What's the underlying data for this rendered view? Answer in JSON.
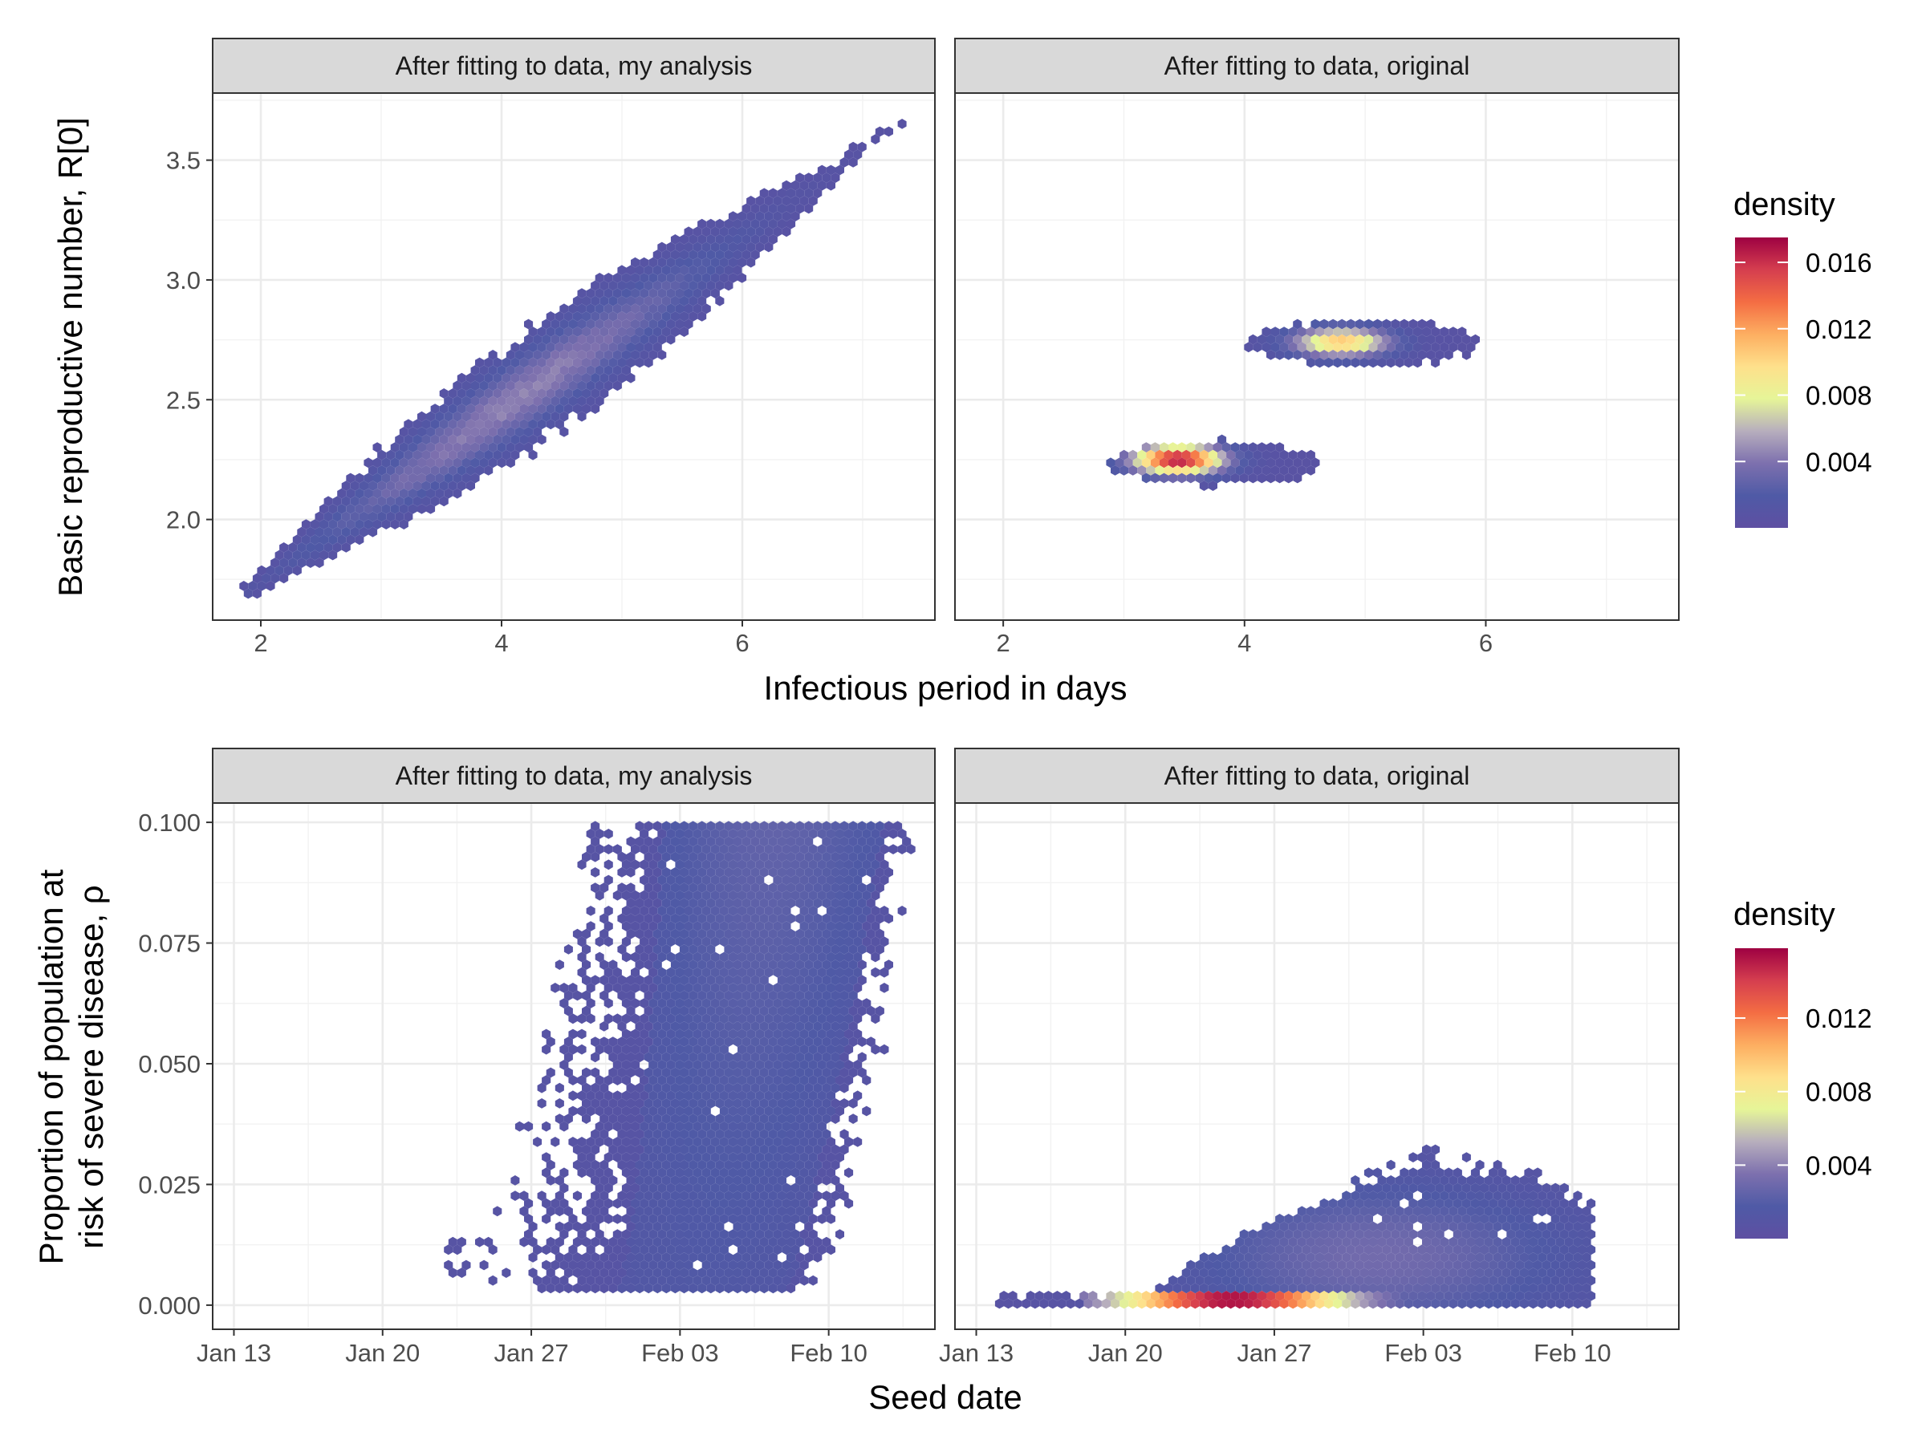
{
  "colors": {
    "palette": [
      "#5e4fa2",
      "#4f5aa6",
      "#7d70ae",
      "#b7aebd",
      "#e6f598",
      "#fee08b",
      "#fdae61",
      "#f46d43",
      "#d53e4f",
      "#9e0142"
    ],
    "strip_bg": "#d9d9d9",
    "panel_border": "#333333",
    "grid_major": "#ebebeb"
  },
  "chart_data": [
    {
      "type": "heatmap",
      "subtype": "hexbin-density",
      "xlabel": "Infectious period in days",
      "ylabel": "Basic reproductive number, R[0]",
      "xlim": [
        1.6,
        7.6
      ],
      "ylim": [
        1.58,
        3.78
      ],
      "x_ticks": [
        2,
        4,
        6
      ],
      "x_tick_labels": [
        "2",
        "4",
        "6"
      ],
      "y_ticks": [
        2.0,
        2.5,
        3.0,
        3.5
      ],
      "y_tick_labels": [
        "2.0",
        "2.5",
        "3.0",
        "3.5"
      ],
      "legend": {
        "title": "density",
        "range": [
          0,
          0.0175
        ],
        "ticks": [
          0.004,
          0.008,
          0.012,
          0.016
        ],
        "tick_labels": [
          "0.004",
          "0.008",
          "0.012",
          "0.016"
        ],
        "placement": "right"
      },
      "grid": true,
      "panels": [
        {
          "strip": "After fitting to data, my analysis",
          "clusters": [
            {
              "shape": "diagonal-band",
              "from": [
                1.9,
                1.7
              ],
              "to": [
                7.3,
                3.65
              ],
              "center": [
                4.2,
                2.42
              ],
              "peak_density": 0.0035
            }
          ]
        },
        {
          "strip": "After fitting to data, original",
          "clusters": [
            {
              "shape": "ellipse",
              "center": [
                3.45,
                2.25
              ],
              "x_range": [
                2.85,
                4.6
              ],
              "y_range": [
                2.14,
                2.33
              ],
              "peak_density": 0.0165
            },
            {
              "shape": "ellipse",
              "center": [
                4.8,
                2.74
              ],
              "x_range": [
                4.05,
                5.95
              ],
              "y_range": [
                2.64,
                2.83
              ],
              "peak_density": 0.0095
            }
          ]
        }
      ]
    },
    {
      "type": "heatmap",
      "subtype": "hexbin-density",
      "xlabel": "Seed date",
      "ylabel_lines": [
        "Proportion of population at",
        "risk of severe disease, ρ"
      ],
      "xlim": [
        "Jan 12",
        "Feb 15"
      ],
      "ylim": [
        -0.005,
        0.104
      ],
      "x_ticks": [
        "Jan 13",
        "Jan 20",
        "Jan 27",
        "Feb 03",
        "Feb 10"
      ],
      "x_tick_labels": [
        "Jan 13",
        "Jan 20",
        "Jan 27",
        "Feb 03",
        "Feb 10"
      ],
      "y_ticks": [
        0.0,
        0.025,
        0.05,
        0.075,
        0.1
      ],
      "y_tick_labels": [
        "0.000",
        "0.025",
        "0.050",
        "0.075",
        "0.100"
      ],
      "legend": {
        "title": "density",
        "range": [
          0,
          0.0158
        ],
        "ticks": [
          0.004,
          0.008,
          0.012
        ],
        "tick_labels": [
          "0.004",
          "0.008",
          "0.012"
        ],
        "placement": "right"
      },
      "grid": true,
      "panels": [
        {
          "strip": "After fitting to data, my analysis",
          "clusters": [
            {
              "shape": "slanted-block",
              "x_range": [
                "Jan 23",
                "Feb 14"
              ],
              "y_range": [
                0.003,
                0.1
              ],
              "peak_density": 0.0015
            }
          ]
        },
        {
          "strip": "After fitting to data, original",
          "clusters": [
            {
              "shape": "tail-and-blob",
              "x_range": [
                "Jan 14",
                "Feb 11"
              ],
              "y_range": [
                0.0,
                0.032
              ],
              "center": [
                "Feb 01",
                0.01
              ],
              "peak_density": 0.0035
            },
            {
              "shape": "bottom-streak",
              "x_range": [
                "Jan 18",
                "Feb 02"
              ],
              "y_value": 0.001,
              "center": [
                "Jan 25",
                0.001
              ],
              "peak_density": 0.0145
            }
          ]
        }
      ]
    }
  ]
}
